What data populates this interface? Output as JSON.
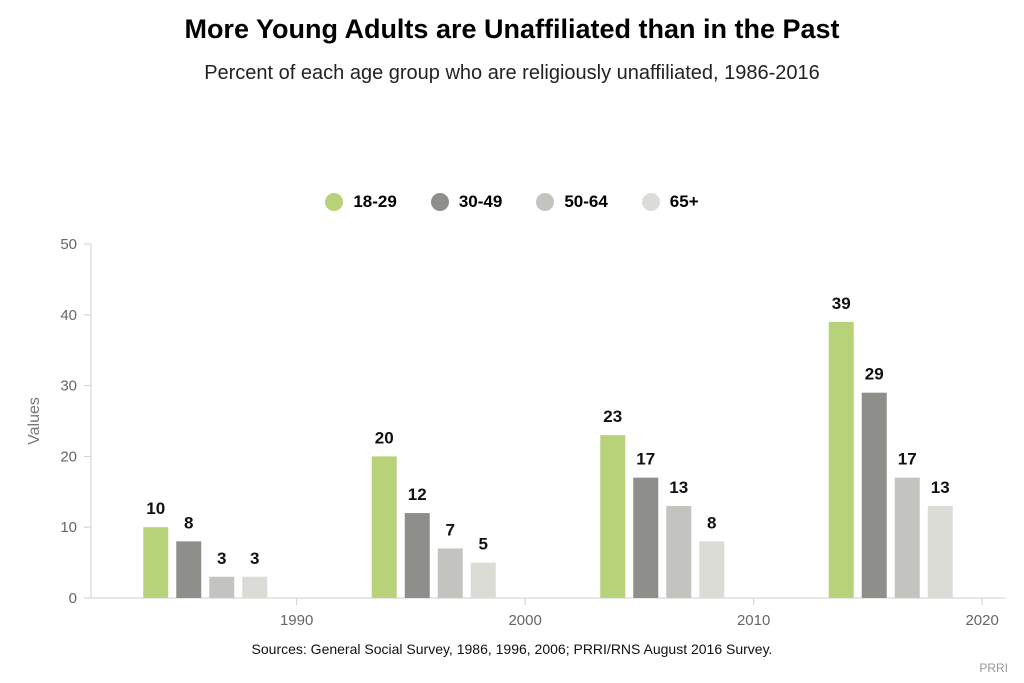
{
  "header": {
    "title": "More Young Adults are Unaffiliated than in the Past",
    "subtitle": "Percent of each age group who are religiously unaffiliated, 1986-2016"
  },
  "footer": {
    "source": "Sources: General Social Survey, 1986, 1996, 2006; PRRI/RNS August 2016 Survey.",
    "credit": "PRRI"
  },
  "chart_data": {
    "type": "bar",
    "ylabel": "Values",
    "ylim": [
      0,
      50
    ],
    "yticks": [
      0,
      10,
      20,
      30,
      40,
      50
    ],
    "xlim": [
      1981,
      2021
    ],
    "xticks": [
      1990,
      2000,
      2010,
      2020
    ],
    "grid": false,
    "legend_placement": "top-center",
    "groups_x": [
      1986,
      1996,
      2006,
      2016
    ],
    "series": [
      {
        "name": "18-29",
        "color": "#b8d27a",
        "values": [
          10,
          20,
          23,
          39
        ]
      },
      {
        "name": "30-49",
        "color": "#8e8f8b",
        "values": [
          8,
          12,
          17,
          29
        ]
      },
      {
        "name": "50-64",
        "color": "#c3c3bf",
        "values": [
          3,
          7,
          13,
          17
        ]
      },
      {
        "name": "65+",
        "color": "#dcdcd7",
        "values": [
          3,
          5,
          8,
          13
        ]
      }
    ]
  }
}
